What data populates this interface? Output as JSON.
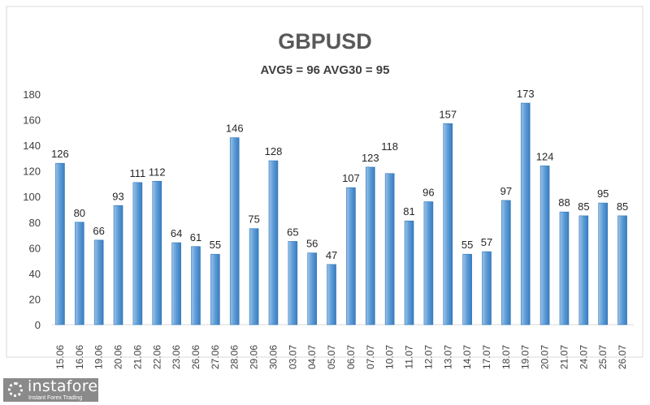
{
  "chart_data": {
    "type": "bar",
    "title": "GBPUSD",
    "subtitle": "AVG5 = 96 AVG30 = 95",
    "categories": [
      "15.06",
      "16.06",
      "19.06",
      "20.06",
      "21.06",
      "22.06",
      "23.06",
      "26.06",
      "27.06",
      "28.06",
      "29.06",
      "30.06",
      "03.07",
      "04.07",
      "05.07",
      "06.07",
      "07.07",
      "10.07",
      "11.07",
      "12.07",
      "13.07",
      "14.07",
      "17.07",
      "18.07",
      "19.07",
      "20.07",
      "21.07",
      "24.07",
      "25.07",
      "26.07"
    ],
    "values": [
      126,
      80,
      66,
      93,
      111,
      112,
      64,
      61,
      55,
      146,
      75,
      128,
      65,
      56,
      47,
      107,
      123,
      118,
      81,
      96,
      157,
      55,
      57,
      97,
      173,
      124,
      88,
      85,
      95,
      85
    ],
    "ylim": [
      0,
      180
    ],
    "yticks": [
      0,
      20,
      40,
      60,
      80,
      100,
      120,
      140,
      160,
      180
    ],
    "grid": false,
    "data_labels": true,
    "bar_color": "#5b9bd5"
  },
  "logo": {
    "name": "instaforex",
    "tagline": "Instant Forex Trading"
  }
}
